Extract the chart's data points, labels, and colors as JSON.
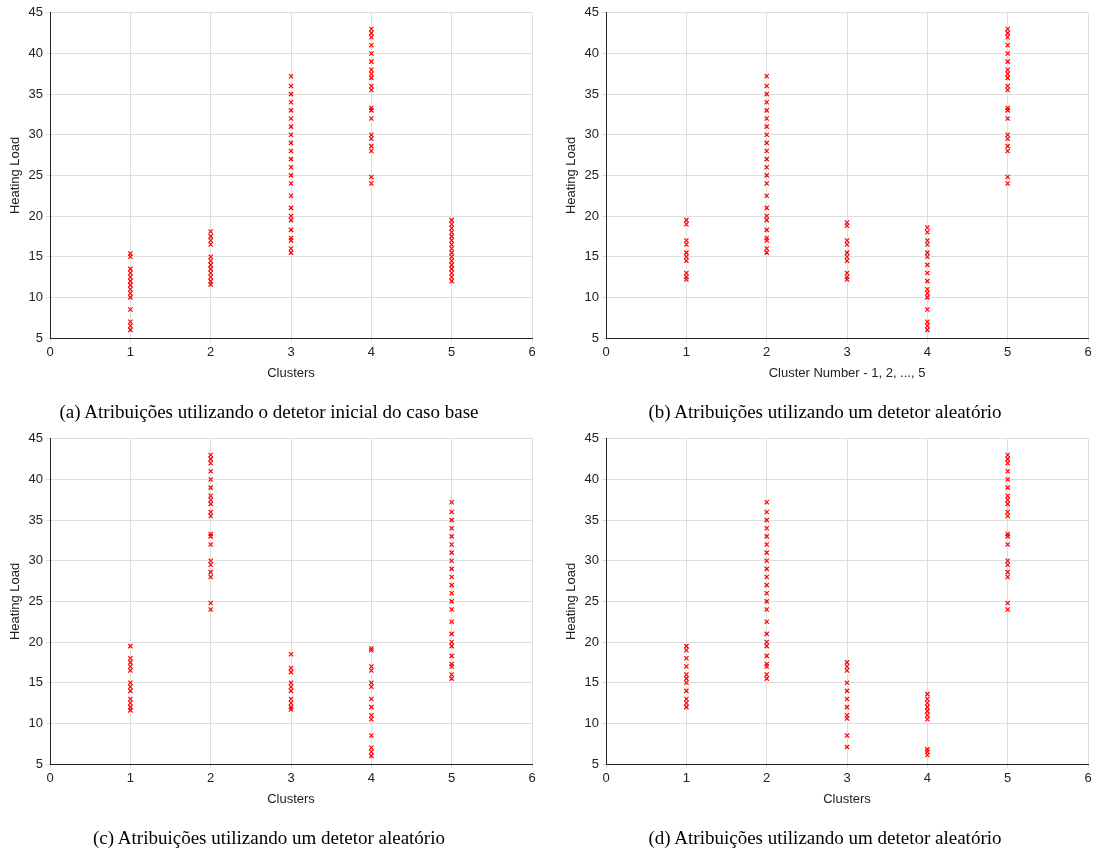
{
  "chart_data": [
    {
      "type": "scatter",
      "title": "(a) Atribuições utilizando o detetor inicial do caso base",
      "xlabel": "Clusters",
      "ylabel": "Heating Load",
      "color": "#ff0000",
      "marker": "cross",
      "grid": true,
      "xlim": [
        0,
        6
      ],
      "ylim": [
        5,
        45
      ],
      "xticks": [
        0,
        1,
        2,
        3,
        4,
        5,
        6
      ],
      "yticks": [
        5,
        10,
        15,
        20,
        25,
        30,
        35,
        40,
        45
      ],
      "x": [
        1,
        1,
        1,
        1,
        1,
        1,
        1,
        1,
        1,
        1,
        1,
        1,
        1,
        1,
        2,
        2,
        2,
        2,
        2,
        2,
        2,
        2,
        2,
        2,
        2,
        2,
        3,
        3,
        3,
        3,
        3,
        3,
        3,
        3,
        3,
        3,
        3,
        3,
        3,
        3,
        3,
        3,
        3,
        3,
        3,
        3,
        3,
        3,
        3,
        4,
        4,
        4,
        4,
        4,
        4,
        4,
        4,
        4,
        4,
        4,
        4,
        4,
        4,
        4,
        4,
        4,
        4,
        4,
        4,
        5,
        5,
        5,
        5,
        5,
        5,
        5,
        5,
        5,
        5,
        5,
        5,
        5,
        5,
        5,
        5
      ],
      "values": [
        6,
        6.5,
        7,
        8.5,
        10,
        10.5,
        11,
        11.5,
        12,
        12.5,
        13,
        13.5,
        15,
        15.4,
        11.6,
        12,
        12.5,
        13,
        13.5,
        14,
        14.5,
        15,
        16.5,
        17,
        17.5,
        18.1,
        15.5,
        16,
        17,
        17.3,
        18.3,
        19.5,
        20,
        21,
        22.5,
        24,
        25,
        26,
        27,
        28,
        29,
        30,
        31,
        32,
        33,
        34,
        35,
        36,
        37.2,
        24,
        24.8,
        28,
        28.6,
        29.5,
        30,
        32,
        33,
        33.3,
        35.5,
        36,
        37,
        37.5,
        38,
        39,
        40,
        41,
        42,
        42.5,
        43,
        12,
        12.5,
        13,
        13.5,
        14,
        14.5,
        15,
        15.5,
        16,
        16.5,
        17,
        17.5,
        18,
        18.5,
        19,
        19.5
      ]
    },
    {
      "type": "scatter",
      "title": "(b) Atribuições utilizando um detetor aleatório",
      "xlabel": "Cluster Number - 1, 2, ..., 5",
      "ylabel": "Heating Load",
      "color": "#ff0000",
      "marker": "cross",
      "grid": true,
      "xlim": [
        0,
        6
      ],
      "ylim": [
        5,
        45
      ],
      "xticks": [
        0,
        1,
        2,
        3,
        4,
        5,
        6
      ],
      "yticks": [
        5,
        10,
        15,
        20,
        25,
        30,
        35,
        40,
        45
      ],
      "x": [
        1,
        1,
        1,
        1,
        1,
        1,
        1,
        1,
        1,
        1,
        2,
        2,
        2,
        2,
        2,
        2,
        2,
        2,
        2,
        2,
        2,
        2,
        2,
        2,
        2,
        2,
        2,
        2,
        2,
        2,
        2,
        2,
        2,
        3,
        3,
        3,
        3,
        3,
        3,
        3,
        3,
        3,
        3,
        4,
        4,
        4,
        4,
        4,
        4,
        4,
        4,
        4,
        4,
        4,
        4,
        4,
        4,
        4,
        4,
        5,
        5,
        5,
        5,
        5,
        5,
        5,
        5,
        5,
        5,
        5,
        5,
        5,
        5,
        5,
        5,
        5,
        5,
        5,
        5
      ],
      "values": [
        12.2,
        12.5,
        13,
        14.5,
        15,
        15.5,
        16.5,
        17,
        19,
        19.5,
        15.5,
        16,
        17,
        17.3,
        18.3,
        19.5,
        20,
        21,
        22.5,
        24,
        25,
        26,
        27,
        28,
        29,
        30,
        31,
        32,
        33,
        34,
        35,
        36,
        37.2,
        12.2,
        12.5,
        13,
        14.5,
        15,
        15.5,
        16.5,
        17,
        18.8,
        19.2,
        6,
        6.5,
        7,
        8.5,
        10,
        10.5,
        11,
        12,
        13,
        14,
        15,
        15.5,
        16.5,
        17,
        18,
        18.6,
        24,
        24.8,
        28,
        28.6,
        29.5,
        30,
        32,
        33,
        33.3,
        35.5,
        36,
        37,
        37.5,
        38,
        39,
        40,
        41,
        42,
        42.5,
        43
      ]
    },
    {
      "type": "scatter",
      "title": "(c) Atribuições utilizando um detetor aleatório",
      "xlabel": "Clusters",
      "ylabel": "Heating Load",
      "color": "#ff0000",
      "marker": "cross",
      "grid": true,
      "xlim": [
        0,
        6
      ],
      "ylim": [
        5,
        45
      ],
      "xticks": [
        0,
        1,
        2,
        3,
        4,
        5,
        6
      ],
      "yticks": [
        5,
        10,
        15,
        20,
        25,
        30,
        35,
        40,
        45
      ],
      "x": [
        1,
        1,
        1,
        1,
        1,
        1,
        1,
        1,
        1,
        1,
        1,
        1,
        2,
        2,
        2,
        2,
        2,
        2,
        2,
        2,
        2,
        2,
        2,
        2,
        2,
        2,
        2,
        2,
        2,
        2,
        2,
        2,
        3,
        3,
        3,
        3,
        3,
        3,
        3,
        3,
        3,
        3,
        4,
        4,
        4,
        4,
        4,
        4,
        4,
        4,
        4,
        4,
        4,
        4,
        4,
        4,
        5,
        5,
        5,
        5,
        5,
        5,
        5,
        5,
        5,
        5,
        5,
        5,
        5,
        5,
        5,
        5,
        5,
        5,
        5,
        5,
        5,
        5,
        5
      ],
      "values": [
        11.6,
        12,
        12.5,
        13,
        14,
        14.5,
        15,
        16.5,
        17,
        17.5,
        18,
        19.5,
        24,
        24.8,
        28,
        28.6,
        29.5,
        30,
        32,
        33,
        33.3,
        35.5,
        36,
        37,
        37.5,
        38,
        39,
        40,
        41,
        42,
        42.5,
        43,
        11.7,
        12,
        12.5,
        13,
        14,
        14.5,
        15,
        16.3,
        16.8,
        18.5,
        6,
        6.5,
        7,
        8.5,
        10.5,
        11,
        12,
        13,
        14.5,
        15,
        16.5,
        17,
        19,
        19.2,
        15.5,
        16,
        17,
        17.3,
        18.3,
        19.5,
        20,
        21,
        22.5,
        24,
        25,
        26,
        27,
        28,
        29,
        30,
        31,
        32,
        33,
        34,
        35,
        36,
        37.2
      ]
    },
    {
      "type": "scatter",
      "title": "(d) Atribuições utilizando um detetor aleatório",
      "xlabel": "Clusters",
      "ylabel": "Heating Load",
      "color": "#ff0000",
      "marker": "cross",
      "grid": true,
      "xlim": [
        0,
        6
      ],
      "ylim": [
        5,
        45
      ],
      "xticks": [
        0,
        1,
        2,
        3,
        4,
        5,
        6
      ],
      "yticks": [
        5,
        10,
        15,
        20,
        25,
        30,
        35,
        40,
        45
      ],
      "x": [
        1,
        1,
        1,
        1,
        1,
        1,
        1,
        1,
        1,
        1,
        1,
        2,
        2,
        2,
        2,
        2,
        2,
        2,
        2,
        2,
        2,
        2,
        2,
        2,
        2,
        2,
        2,
        2,
        2,
        2,
        2,
        2,
        2,
        2,
        3,
        3,
        3,
        3,
        3,
        3,
        3,
        3,
        3,
        3,
        3,
        4,
        4,
        4,
        4,
        4,
        4,
        4,
        4,
        4,
        4,
        5,
        5,
        5,
        5,
        5,
        5,
        5,
        5,
        5,
        5,
        5,
        5,
        5,
        5,
        5,
        5,
        5,
        5,
        5,
        5
      ],
      "values": [
        12,
        12.5,
        13,
        14,
        15,
        15.5,
        16,
        17,
        18,
        19,
        19.5,
        15.5,
        16,
        17,
        17.3,
        18.3,
        19.5,
        20,
        21,
        22.5,
        24,
        25,
        26,
        27,
        28,
        29,
        30,
        31,
        32,
        33,
        34,
        35,
        36,
        37.2,
        7.1,
        8.5,
        10.6,
        11,
        12,
        13,
        14,
        15,
        16.5,
        17,
        17.5,
        6.1,
        6.5,
        6.8,
        10.5,
        11,
        11.5,
        12,
        12.5,
        13,
        13.6,
        24,
        24.8,
        28,
        28.6,
        29.5,
        30,
        32,
        33,
        33.3,
        35.5,
        36,
        37,
        37.5,
        38,
        39,
        40,
        41,
        42,
        42.5,
        43
      ]
    }
  ]
}
